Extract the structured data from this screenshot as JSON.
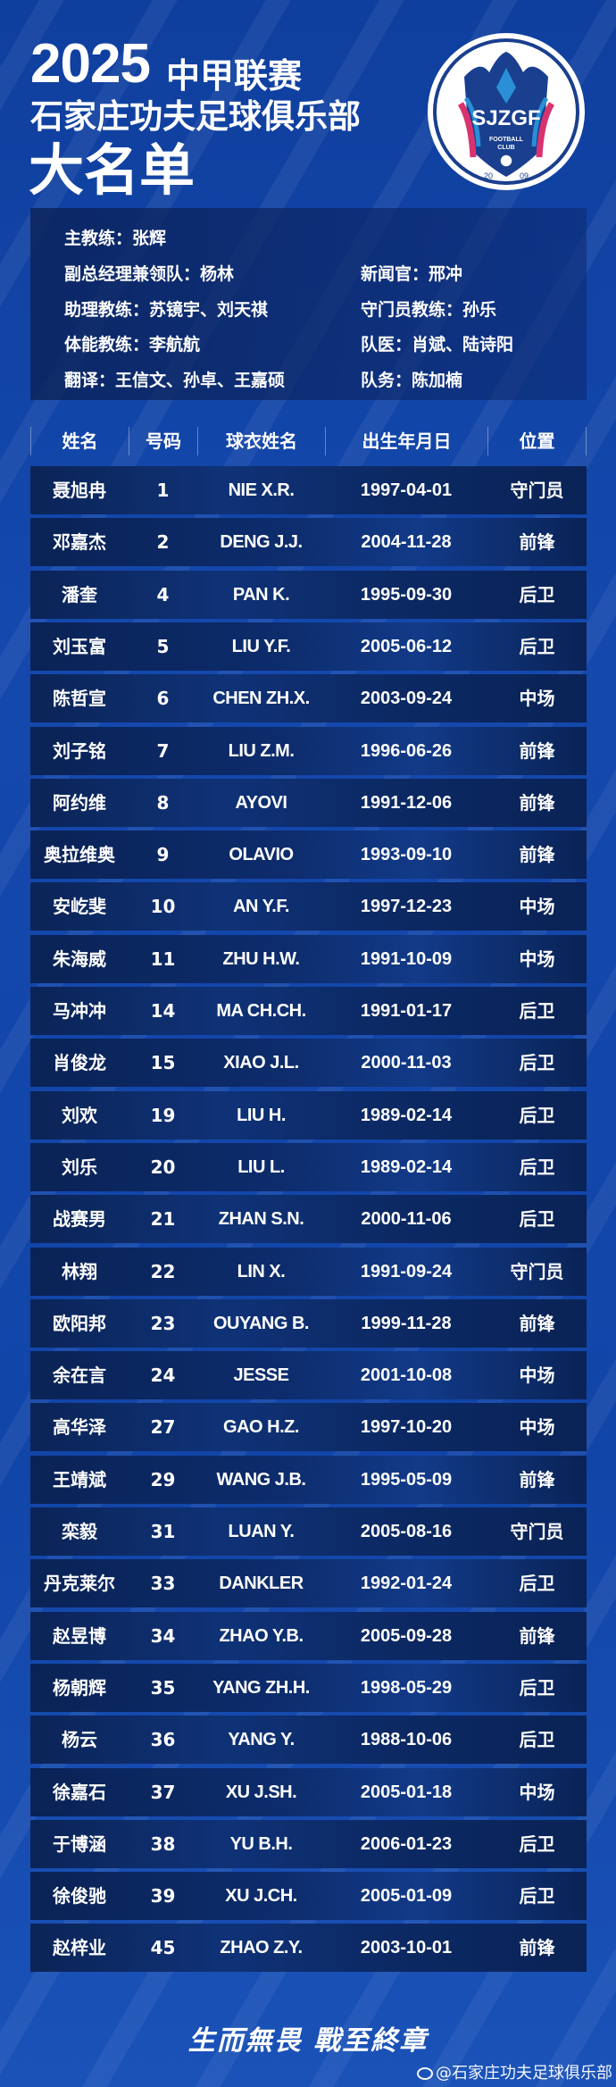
{
  "header": {
    "year": "2025",
    "league": "中甲联赛",
    "club": "石家庄功夫足球俱乐部",
    "title": "大名单"
  },
  "logo": {
    "text": "SJZGF",
    "sub1": "FOOTBALL",
    "sub2": "CLUB",
    "year_left": "20",
    "year_right": "09",
    "colors": {
      "navy": "#1a3f8f",
      "blue": "#2a8fd6",
      "pink": "#d9336f"
    }
  },
  "staff": {
    "head_coach": "主教练：张辉",
    "deputy_gm": "副总经理兼领队：杨林",
    "press_officer": "新闻官：邢冲",
    "assistant_coaches": "助理教练：苏镜宇、刘天祺",
    "gk_coach": "守门员教练：孙乐",
    "fitness_coach": "体能教练：李航航",
    "doctors": "队医：肖斌、陆诗阳",
    "translators": "翻译：王信文、孙卓、王嘉硕",
    "team_affairs": "队务：陈加楠"
  },
  "table": {
    "columns": [
      "姓名",
      "号码",
      "球衣姓名",
      "出生年月日",
      "位置"
    ],
    "rows": [
      [
        "聂旭冉",
        "1",
        "NIE X.R.",
        "1997-04-01",
        "守门员"
      ],
      [
        "邓嘉杰",
        "2",
        "DENG J.J.",
        "2004-11-28",
        "前锋"
      ],
      [
        "潘奎",
        "4",
        "PAN K.",
        "1995-09-30",
        "后卫"
      ],
      [
        "刘玉富",
        "5",
        "LIU Y.F.",
        "2005-06-12",
        "后卫"
      ],
      [
        "陈哲宣",
        "6",
        "CHEN ZH.X.",
        "2003-09-24",
        "中场"
      ],
      [
        "刘子铭",
        "7",
        "LIU Z.M.",
        "1996-06-26",
        "前锋"
      ],
      [
        "阿约维",
        "8",
        "AYOVI",
        "1991-12-06",
        "前锋"
      ],
      [
        "奥拉维奥",
        "9",
        "OLAVIO",
        "1993-09-10",
        "前锋"
      ],
      [
        "安屹斐",
        "10",
        "AN Y.F.",
        "1997-12-23",
        "中场"
      ],
      [
        "朱海威",
        "11",
        "ZHU H.W.",
        "1991-10-09",
        "中场"
      ],
      [
        "马冲冲",
        "14",
        "MA CH.CH.",
        "1991-01-17",
        "后卫"
      ],
      [
        "肖俊龙",
        "15",
        "XIAO J.L.",
        "2000-11-03",
        "后卫"
      ],
      [
        "刘欢",
        "19",
        "LIU H.",
        "1989-02-14",
        "后卫"
      ],
      [
        "刘乐",
        "20",
        "LIU L.",
        "1989-02-14",
        "后卫"
      ],
      [
        "战赛男",
        "21",
        "ZHAN S.N.",
        "2000-11-06",
        "后卫"
      ],
      [
        "林翔",
        "22",
        "LIN X.",
        "1991-09-24",
        "守门员"
      ],
      [
        "欧阳邦",
        "23",
        "OUYANG B.",
        "1999-11-28",
        "前锋"
      ],
      [
        "余在言",
        "24",
        "JESSE",
        "2001-10-08",
        "中场"
      ],
      [
        "高华泽",
        "27",
        "GAO H.Z.",
        "1997-10-20",
        "中场"
      ],
      [
        "王靖斌",
        "29",
        "WANG J.B.",
        "1995-05-09",
        "前锋"
      ],
      [
        "栾毅",
        "31",
        "LUAN Y.",
        "2005-08-16",
        "守门员"
      ],
      [
        "丹克莱尔",
        "33",
        "DANKLER",
        "1992-01-24",
        "后卫"
      ],
      [
        "赵昱博",
        "34",
        "ZHAO Y.B.",
        "2005-09-28",
        "前锋"
      ],
      [
        "杨朝辉",
        "35",
        "YANG ZH.H.",
        "1998-05-29",
        "后卫"
      ],
      [
        "杨云",
        "36",
        "YANG Y.",
        "1988-10-06",
        "后卫"
      ],
      [
        "徐嘉石",
        "37",
        "XU J.SH.",
        "2005-01-18",
        "中场"
      ],
      [
        "于博涵",
        "38",
        "YU B.H.",
        "2006-01-23",
        "后卫"
      ],
      [
        "徐俊驰",
        "39",
        "XU J.CH.",
        "2005-01-09",
        "后卫"
      ],
      [
        "赵梓业",
        "45",
        "ZHAO Z.Y.",
        "2003-10-01",
        "前锋"
      ]
    ]
  },
  "footer": {
    "slogan": "生而無畏 戰至終章",
    "watermark": "@石家庄功夫足球俱乐部",
    "watermark_icon": "weibo-icon"
  },
  "colors": {
    "background": "#1448ad",
    "row_dark": "#0b2457",
    "text": "#ffffff"
  }
}
